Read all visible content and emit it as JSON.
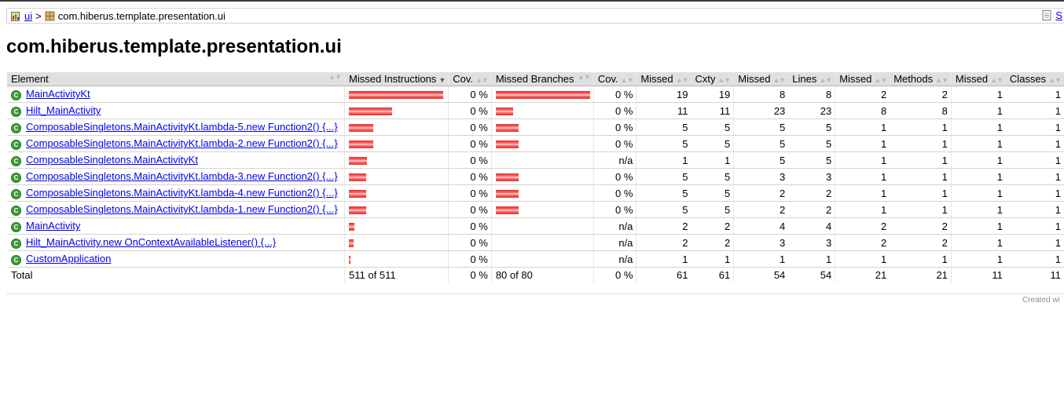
{
  "breadcrumb": {
    "root_label": "ui",
    "separator": ">",
    "current": "com.hiberus.template.presentation.ui",
    "sessions_label": "S"
  },
  "title": "com.hiberus.template.presentation.ui",
  "table": {
    "headers": [
      "Element",
      "Missed Instructions",
      "Cov.",
      "Missed Branches",
      "Cov.",
      "Missed",
      "Cxty",
      "Missed",
      "Lines",
      "Missed",
      "Methods",
      "Missed",
      "Classes"
    ],
    "rows": [
      {
        "name": "MainActivityKt",
        "instr_frac": 1.0,
        "instr_cov": "0 %",
        "branch_frac": 1.0,
        "branch_cov": "0 %",
        "missed_cxty": "19",
        "cxty": "19",
        "missed_lines": "8",
        "lines": "8",
        "missed_methods": "2",
        "methods": "2",
        "missed_classes": "1",
        "classes": "1"
      },
      {
        "name": "Hilt_MainActivity",
        "instr_frac": 0.46,
        "instr_cov": "0 %",
        "branch_frac": 0.18,
        "branch_cov": "0 %",
        "missed_cxty": "11",
        "cxty": "11",
        "missed_lines": "23",
        "lines": "23",
        "missed_methods": "8",
        "methods": "8",
        "missed_classes": "1",
        "classes": "1"
      },
      {
        "name": "ComposableSingletons.MainActivityKt.lambda-5.new Function2() {...}",
        "instr_frac": 0.26,
        "instr_cov": "0 %",
        "branch_frac": 0.24,
        "branch_cov": "0 %",
        "missed_cxty": "5",
        "cxty": "5",
        "missed_lines": "5",
        "lines": "5",
        "missed_methods": "1",
        "methods": "1",
        "missed_classes": "1",
        "classes": "1"
      },
      {
        "name": "ComposableSingletons.MainActivityKt.lambda-2.new Function2() {...}",
        "instr_frac": 0.26,
        "instr_cov": "0 %",
        "branch_frac": 0.24,
        "branch_cov": "0 %",
        "missed_cxty": "5",
        "cxty": "5",
        "missed_lines": "5",
        "lines": "5",
        "missed_methods": "1",
        "methods": "1",
        "missed_classes": "1",
        "classes": "1"
      },
      {
        "name": "ComposableSingletons.MainActivityKt",
        "instr_frac": 0.19,
        "instr_cov": "0 %",
        "branch_frac": 0,
        "branch_cov": "n/a",
        "missed_cxty": "1",
        "cxty": "1",
        "missed_lines": "5",
        "lines": "5",
        "missed_methods": "1",
        "methods": "1",
        "missed_classes": "1",
        "classes": "1"
      },
      {
        "name": "ComposableSingletons.MainActivityKt.lambda-3.new Function2() {...}",
        "instr_frac": 0.18,
        "instr_cov": "0 %",
        "branch_frac": 0.24,
        "branch_cov": "0 %",
        "missed_cxty": "5",
        "cxty": "5",
        "missed_lines": "3",
        "lines": "3",
        "missed_methods": "1",
        "methods": "1",
        "missed_classes": "1",
        "classes": "1"
      },
      {
        "name": "ComposableSingletons.MainActivityKt.lambda-4.new Function2() {...}",
        "instr_frac": 0.18,
        "instr_cov": "0 %",
        "branch_frac": 0.24,
        "branch_cov": "0 %",
        "missed_cxty": "5",
        "cxty": "5",
        "missed_lines": "2",
        "lines": "2",
        "missed_methods": "1",
        "methods": "1",
        "missed_classes": "1",
        "classes": "1"
      },
      {
        "name": "ComposableSingletons.MainActivityKt.lambda-1.new Function2() {...}",
        "instr_frac": 0.18,
        "instr_cov": "0 %",
        "branch_frac": 0.24,
        "branch_cov": "0 %",
        "missed_cxty": "5",
        "cxty": "5",
        "missed_lines": "2",
        "lines": "2",
        "missed_methods": "1",
        "methods": "1",
        "missed_classes": "1",
        "classes": "1"
      },
      {
        "name": "MainActivity",
        "instr_frac": 0.06,
        "instr_cov": "0 %",
        "branch_frac": 0,
        "branch_cov": "n/a",
        "missed_cxty": "2",
        "cxty": "2",
        "missed_lines": "4",
        "lines": "4",
        "missed_methods": "2",
        "methods": "2",
        "missed_classes": "1",
        "classes": "1"
      },
      {
        "name": "Hilt_MainActivity.new OnContextAvailableListener() {...}",
        "instr_frac": 0.05,
        "instr_cov": "0 %",
        "branch_frac": 0,
        "branch_cov": "n/a",
        "missed_cxty": "2",
        "cxty": "2",
        "missed_lines": "3",
        "lines": "3",
        "missed_methods": "2",
        "methods": "2",
        "missed_classes": "1",
        "classes": "1"
      },
      {
        "name": "CustomApplication",
        "instr_frac": 0.02,
        "instr_cov": "0 %",
        "branch_frac": 0,
        "branch_cov": "n/a",
        "missed_cxty": "1",
        "cxty": "1",
        "missed_lines": "1",
        "lines": "1",
        "missed_methods": "1",
        "methods": "1",
        "missed_classes": "1",
        "classes": "1"
      }
    ],
    "total": {
      "label": "Total",
      "instr": "511 of 511",
      "instr_cov": "0 %",
      "branch": "80 of 80",
      "branch_cov": "0 %",
      "missed_cxty": "61",
      "cxty": "61",
      "missed_lines": "54",
      "lines": "54",
      "missed_methods": "21",
      "methods": "21",
      "missed_classes": "11",
      "classes": "11"
    }
  },
  "footer": {
    "created_text": "Created wi"
  },
  "colors": {
    "bar_red": "#ff4444",
    "link": "#0000ee",
    "header_bg": "#e0e0e0",
    "class_icon": "#3a9a3a"
  }
}
